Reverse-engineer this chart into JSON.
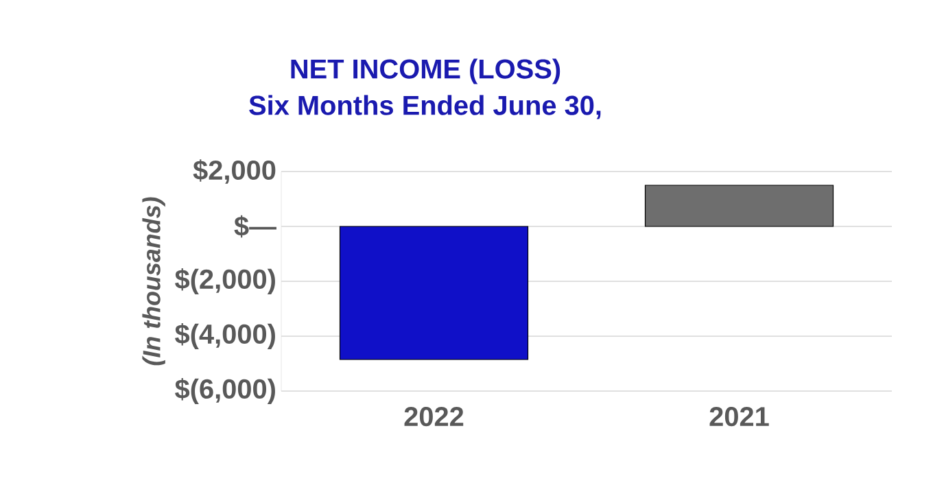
{
  "chart_data": {
    "type": "bar",
    "title": "NET INCOME (LOSS)",
    "subtitle": "Six Months Ended June 30,",
    "ylabel": "(In thousands)",
    "categories": [
      "2022",
      "2021"
    ],
    "values": [
      -4850,
      1500
    ],
    "colors": [
      "#1010c8",
      "#6e6e6e"
    ],
    "ylim": [
      -6000,
      2000
    ],
    "yticks": [
      {
        "value": 2000,
        "label": "$2,000"
      },
      {
        "value": 0,
        "label": "$—"
      },
      {
        "value": -2000,
        "label": "$(2,000)"
      },
      {
        "value": -4000,
        "label": "$(4,000)"
      },
      {
        "value": -6000,
        "label": "$(6,000)"
      }
    ],
    "grid": "y"
  }
}
